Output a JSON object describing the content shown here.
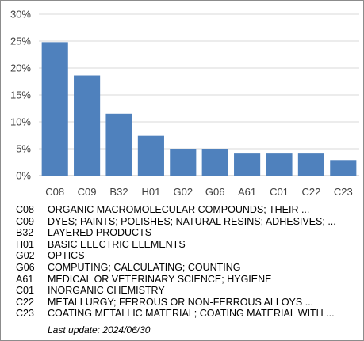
{
  "chart_data": {
    "type": "bar",
    "categories": [
      "C08",
      "C09",
      "B32",
      "H01",
      "G02",
      "G06",
      "A61",
      "C01",
      "C22",
      "C23"
    ],
    "values": [
      24.8,
      18.6,
      11.5,
      7.4,
      5.0,
      5.0,
      4.1,
      4.1,
      4.1,
      2.9
    ],
    "ylim": [
      0,
      30
    ],
    "yticks": [
      "0%",
      "5%",
      "10%",
      "15%",
      "20%",
      "25%",
      "30%"
    ],
    "ytick_values": [
      0,
      5,
      10,
      15,
      20,
      25,
      30
    ],
    "grid": true,
    "bar_color": "#4f81bd",
    "grid_color": "#d9d9d9"
  },
  "legend": [
    {
      "code": "C08",
      "desc": "ORGANIC MACROMOLECULAR COMPOUNDS; THEIR ..."
    },
    {
      "code": "C09",
      "desc": "DYES; PAINTS; POLISHES; NATURAL RESINS; ADHESIVES; ..."
    },
    {
      "code": "B32",
      "desc": "LAYERED PRODUCTS"
    },
    {
      "code": "H01",
      "desc": "BASIC ELECTRIC ELEMENTS"
    },
    {
      "code": "G02",
      "desc": "OPTICS"
    },
    {
      "code": "G06",
      "desc": "COMPUTING; CALCULATING; COUNTING"
    },
    {
      "code": "A61",
      "desc": "MEDICAL OR VETERINARY SCIENCE; HYGIENE"
    },
    {
      "code": "C01",
      "desc": "INORGANIC CHEMISTRY"
    },
    {
      "code": "C22",
      "desc": "METALLURGY; FERROUS OR NON-FERROUS ALLOYS ..."
    },
    {
      "code": "C23",
      "desc": "COATING METALLIC MATERIAL; COATING MATERIAL WITH ..."
    }
  ],
  "last_update": "Last update:  2024/06/30"
}
